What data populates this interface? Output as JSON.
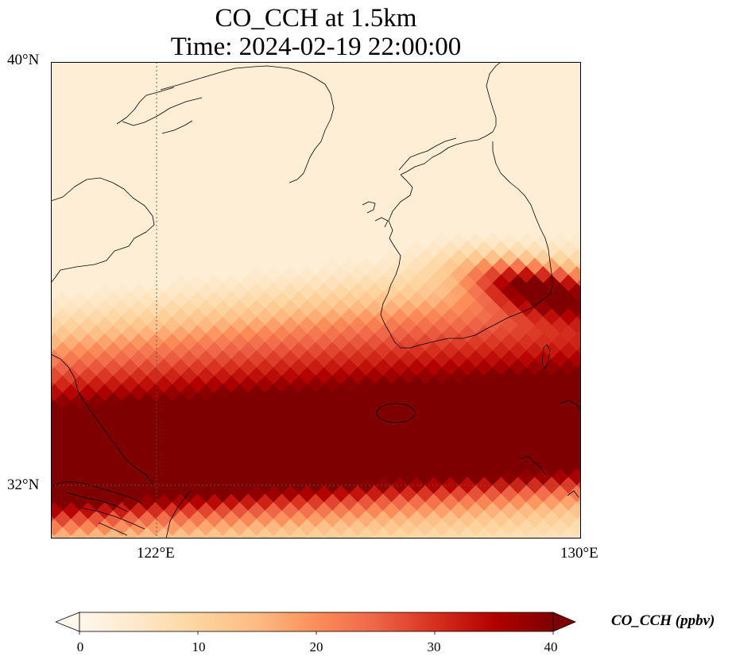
{
  "title_line1": "CO_CCH at 1.5km",
  "title_line2": "Time: 2024-02-19 22:00:00",
  "axes": {
    "lat_ticks": [
      "40°N",
      "32°N"
    ],
    "lon_ticks": [
      "122°E",
      "130°E"
    ]
  },
  "colorbar": {
    "label": "CO_CCH (ppbv)",
    "ticks": [
      "0",
      "10",
      "20",
      "30",
      "40"
    ],
    "min": 0,
    "max": 40,
    "extend": "both",
    "colormap": "OrRd",
    "colors": [
      "#fff7ec",
      "#fee8c8",
      "#fdd49e",
      "#fdbb84",
      "#fc8d59",
      "#ef6548",
      "#d7301f",
      "#b30000",
      "#7f0000"
    ]
  },
  "chart_data": {
    "type": "heatmap",
    "title": "CO_CCH at 1.5km\nTime: 2024-02-19 22:00:00",
    "variable": "CO_CCH",
    "units": "ppbv",
    "xlabel": "",
    "ylabel": "",
    "lon_range": [
      120,
      130
    ],
    "lat_range": [
      31,
      40
    ],
    "gridlines": {
      "lon": [
        122,
        130
      ],
      "lat": [
        32,
        40
      ]
    },
    "value_range": [
      0,
      40
    ],
    "features": [
      {
        "feature": "high-concentration band",
        "orientation": "west-southwest to east-northeast",
        "lat_range": [
          32.7,
          35.0
        ],
        "value_range": [
          30,
          40
        ]
      },
      {
        "feature": "secondary plume over southern Korean peninsula",
        "lat_range": [
          34.5,
          36.8
        ],
        "value_range": [
          20,
          40
        ]
      },
      {
        "feature": "background north of 36N",
        "value_range": [
          0,
          5
        ]
      }
    ]
  }
}
